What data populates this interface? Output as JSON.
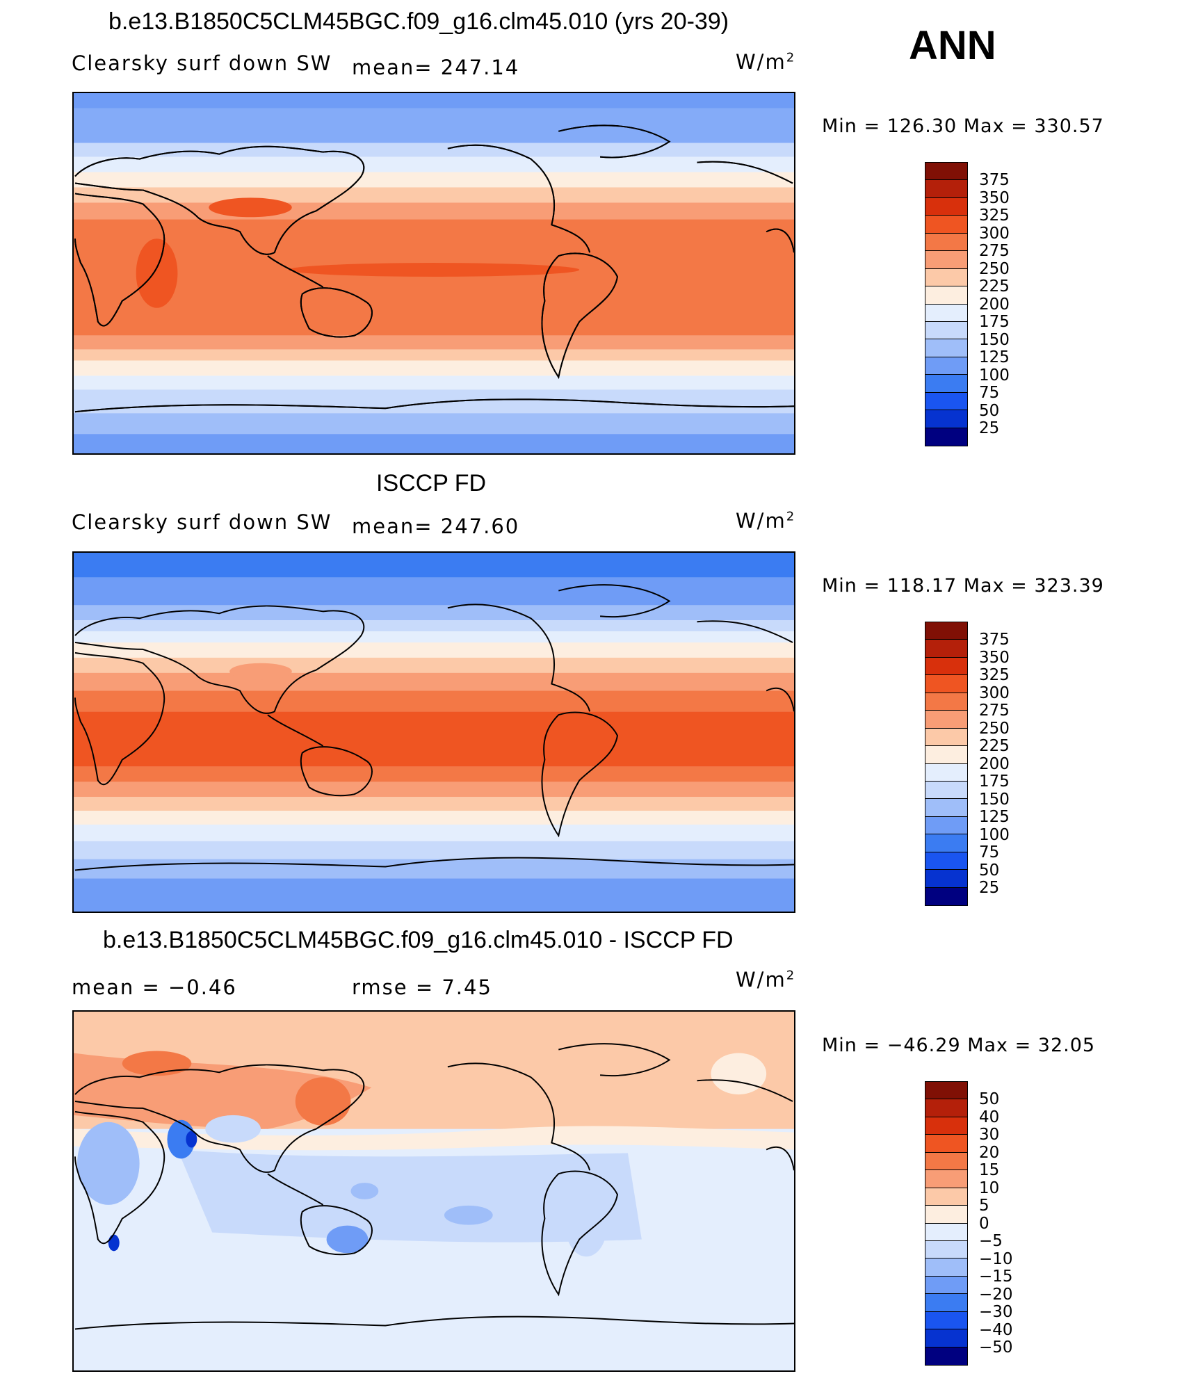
{
  "season": "ANN",
  "panels": [
    {
      "title": "b.e13.B1850C5CLM45BGC.f09_g16.clm45.010 (yrs 20-39)",
      "left_label": "Clearsky surf down SW",
      "stat1": "mean= 247.14",
      "stat2": "",
      "units_base": "W/m",
      "units_exp": "2",
      "min_max": "Min = 126.30 Max = 330.57",
      "map_kind": "field",
      "colorbar_levels": [
        "375",
        "350",
        "325",
        "300",
        "275",
        "250",
        "225",
        "200",
        "175",
        "150",
        "125",
        "100",
        "75",
        "50",
        "25"
      ]
    },
    {
      "title": "ISCCP FD",
      "left_label": "Clearsky surf down SW",
      "stat1": "mean= 247.60",
      "stat2": "",
      "units_base": "W/m",
      "units_exp": "2",
      "min_max": "Min = 118.17 Max = 323.39",
      "map_kind": "field",
      "colorbar_levels": [
        "375",
        "350",
        "325",
        "300",
        "275",
        "250",
        "225",
        "200",
        "175",
        "150",
        "125",
        "100",
        "75",
        "50",
        "25"
      ]
    },
    {
      "title": "b.e13.B1850C5CLM45BGC.f09_g16.clm45.010 - ISCCP FD",
      "left_label": "mean =   −0.46",
      "stat1": "rmse =    7.45",
      "stat2": "",
      "units_base": "W/m",
      "units_exp": "2",
      "min_max": "Min = −46.29 Max =  32.05",
      "map_kind": "diff",
      "colorbar_levels": [
        "50",
        "40",
        "30",
        "20",
        "15",
        "10",
        "5",
        "0",
        "−5",
        "−10",
        "−15",
        "−20",
        "−30",
        "−40",
        "−50"
      ]
    }
  ],
  "colors": {
    "field_scale": [
      "#000080",
      "#0a1fa8",
      "#0633d0",
      "#1a55f0",
      "#3b7cf2",
      "#6f9cf6",
      "#9fbef9",
      "#c8dafb",
      "#e4eefd",
      "#fdeee0",
      "#fcc9a8",
      "#f89d76",
      "#f37846",
      "#ef5522",
      "#d8300c",
      "#b4200a",
      "#801005"
    ],
    "diff_scale": [
      "#000080",
      "#0a1fa8",
      "#0633d0",
      "#1a55f0",
      "#3b7cf2",
      "#6f9cf6",
      "#9fbef9",
      "#c8dafb",
      "#e4eefd",
      "#fdeee0",
      "#fcc9a8",
      "#f89d76",
      "#f37846",
      "#ef5522",
      "#d8300c",
      "#b4200a",
      "#801005"
    ],
    "land_outline": "#000000"
  }
}
